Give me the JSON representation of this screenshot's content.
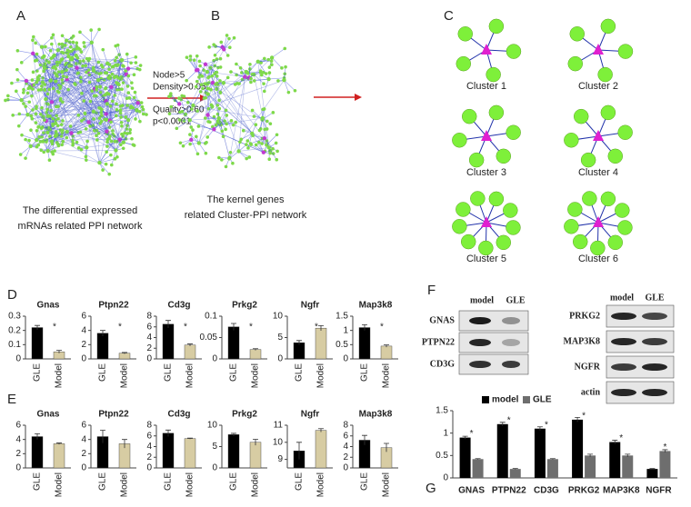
{
  "panels": {
    "A": "A",
    "B": "B",
    "C": "C",
    "D": "D",
    "E": "E",
    "F": "F",
    "G": "G"
  },
  "captions": {
    "A": [
      "The differential expressed",
      "mRNAs related PPI network"
    ],
    "B": [
      "The kernel genes",
      "related Cluster-PPI network"
    ]
  },
  "criteria": [
    "Node>5",
    "Density>0.05",
    "Quality>0.60",
    "p<0.0001"
  ],
  "clusters": [
    "Cluster 1",
    "Cluster 2",
    "Cluster 3",
    "Cluster 4",
    "Cluster 5",
    "Cluster 6"
  ],
  "blot": {
    "columns": [
      "model",
      "GLE"
    ],
    "left_rows": [
      "GNAS",
      "PTPN22",
      "CD3G"
    ],
    "right_rows": [
      "PRKG2",
      "MAP3K8",
      "NGFR",
      "actin"
    ]
  },
  "chart_data": [
    {
      "type": "bar",
      "title": "Gnas",
      "categories": [
        "GLE",
        "Model"
      ],
      "values": [
        0.22,
        0.05
      ],
      "errors": [
        0.015,
        0.01
      ],
      "colors": [
        "#000000",
        "#d7cca3"
      ],
      "ylim": [
        0,
        0.3
      ],
      "yticks": [
        0,
        0.1,
        0.2,
        0.3
      ],
      "annotation": "*"
    },
    {
      "type": "bar",
      "title": "Ptpn22",
      "categories": [
        "GLE",
        "Model"
      ],
      "values": [
        3.6,
        0.8
      ],
      "errors": [
        0.4,
        0.1
      ],
      "colors": [
        "#000000",
        "#d7cca3"
      ],
      "ylim": [
        0,
        6
      ],
      "yticks": [
        0,
        2,
        4,
        6
      ],
      "annotation": "*"
    },
    {
      "type": "bar",
      "title": "Cd3g",
      "categories": [
        "GLE",
        "Model"
      ],
      "values": [
        6.5,
        2.6
      ],
      "errors": [
        0.7,
        0.2
      ],
      "colors": [
        "#000000",
        "#d7cca3"
      ],
      "ylim": [
        0,
        8
      ],
      "yticks": [
        0,
        2,
        4,
        6,
        8
      ],
      "annotation": "*"
    },
    {
      "type": "bar",
      "title": "Prkg2",
      "categories": [
        "GLE",
        "Model"
      ],
      "values": [
        0.075,
        0.022
      ],
      "errors": [
        0.008,
        0.002
      ],
      "colors": [
        "#000000",
        "#d7cca3"
      ],
      "ylim": [
        0,
        0.1
      ],
      "yticks": [
        0,
        0.05,
        0.1
      ],
      "annotation": "*"
    },
    {
      "type": "bar",
      "title": "Ngfr",
      "categories": [
        "GLE",
        "Model"
      ],
      "values": [
        3.8,
        7.2
      ],
      "errors": [
        0.5,
        0.6
      ],
      "colors": [
        "#000000",
        "#d7cca3"
      ],
      "ylim": [
        0,
        10
      ],
      "yticks": [
        0,
        5,
        10
      ],
      "annotation": "*"
    },
    {
      "type": "bar",
      "title": "Map3k8",
      "categories": [
        "GLE",
        "Model"
      ],
      "values": [
        1.1,
        0.45
      ],
      "errors": [
        0.1,
        0.04
      ],
      "colors": [
        "#000000",
        "#d7cca3"
      ],
      "ylim": [
        0,
        1.5
      ],
      "yticks": [
        0,
        0.5,
        1,
        1.5
      ],
      "annotation": "*"
    },
    {
      "type": "bar",
      "title": "Gnas",
      "categories": [
        "GLE",
        "Model"
      ],
      "values": [
        4.4,
        3.4
      ],
      "errors": [
        0.4,
        0.1
      ],
      "colors": [
        "#000000",
        "#d7cca3"
      ],
      "ylim": [
        0,
        6
      ],
      "yticks": [
        0,
        2,
        4,
        6
      ]
    },
    {
      "type": "bar",
      "title": "Ptpn22",
      "categories": [
        "GLE",
        "Model"
      ],
      "values": [
        4.4,
        3.4
      ],
      "errors": [
        0.9,
        0.6
      ],
      "colors": [
        "#000000",
        "#d7cca3"
      ],
      "ylim": [
        0,
        6
      ],
      "yticks": [
        0,
        2,
        4,
        6
      ]
    },
    {
      "type": "bar",
      "title": "Cd3g",
      "categories": [
        "GLE",
        "Model"
      ],
      "values": [
        6.5,
        5.5
      ],
      "errors": [
        0.6,
        0.1
      ],
      "colors": [
        "#000000",
        "#d7cca3"
      ],
      "ylim": [
        0,
        8
      ],
      "yticks": [
        0,
        2,
        4,
        6,
        8
      ]
    },
    {
      "type": "bar",
      "title": "Prkg2",
      "categories": [
        "GLE",
        "Model"
      ],
      "values": [
        7.8,
        6.0
      ],
      "errors": [
        0.3,
        0.7
      ],
      "colors": [
        "#000000",
        "#d7cca3"
      ],
      "ylim": [
        0,
        10
      ],
      "yticks": [
        0,
        5,
        10
      ]
    },
    {
      "type": "bar",
      "title": "Ngfr",
      "categories": [
        "GLE",
        "Model"
      ],
      "values": [
        9.5,
        10.7
      ],
      "errors": [
        0.5,
        0.1
      ],
      "colors": [
        "#000000",
        "#d7cca3"
      ],
      "ylim": [
        8.5,
        11
      ],
      "yticks": [
        9,
        10,
        11
      ]
    },
    {
      "type": "bar",
      "title": "Map3k8",
      "categories": [
        "GLE",
        "Model"
      ],
      "values": [
        5.2,
        3.8
      ],
      "errors": [
        0.9,
        0.8
      ],
      "colors": [
        "#000000",
        "#d7cca3"
      ],
      "ylim": [
        0,
        8
      ],
      "yticks": [
        0,
        2,
        4,
        6,
        8
      ]
    },
    {
      "type": "grouped_bar",
      "categories": [
        "GNAS",
        "PTPN22",
        "CD3G",
        "PRKG2",
        "MAP3K8",
        "NGFR"
      ],
      "series": [
        {
          "name": "model",
          "color": "#000000",
          "values": [
            0.9,
            1.2,
            1.1,
            1.3,
            0.8,
            0.2
          ],
          "errors": [
            0.03,
            0.04,
            0.04,
            0.05,
            0.04,
            0.01
          ]
        },
        {
          "name": "GLE",
          "color": "#6e6e6e",
          "values": [
            0.42,
            0.2,
            0.42,
            0.5,
            0.5,
            0.6
          ],
          "errors": [
            0.01,
            0.01,
            0.01,
            0.03,
            0.03,
            0.03
          ]
        }
      ],
      "ylim": [
        0,
        1.5
      ],
      "yticks": [
        0,
        0.5,
        1,
        1.5
      ],
      "annotation": "*"
    }
  ]
}
